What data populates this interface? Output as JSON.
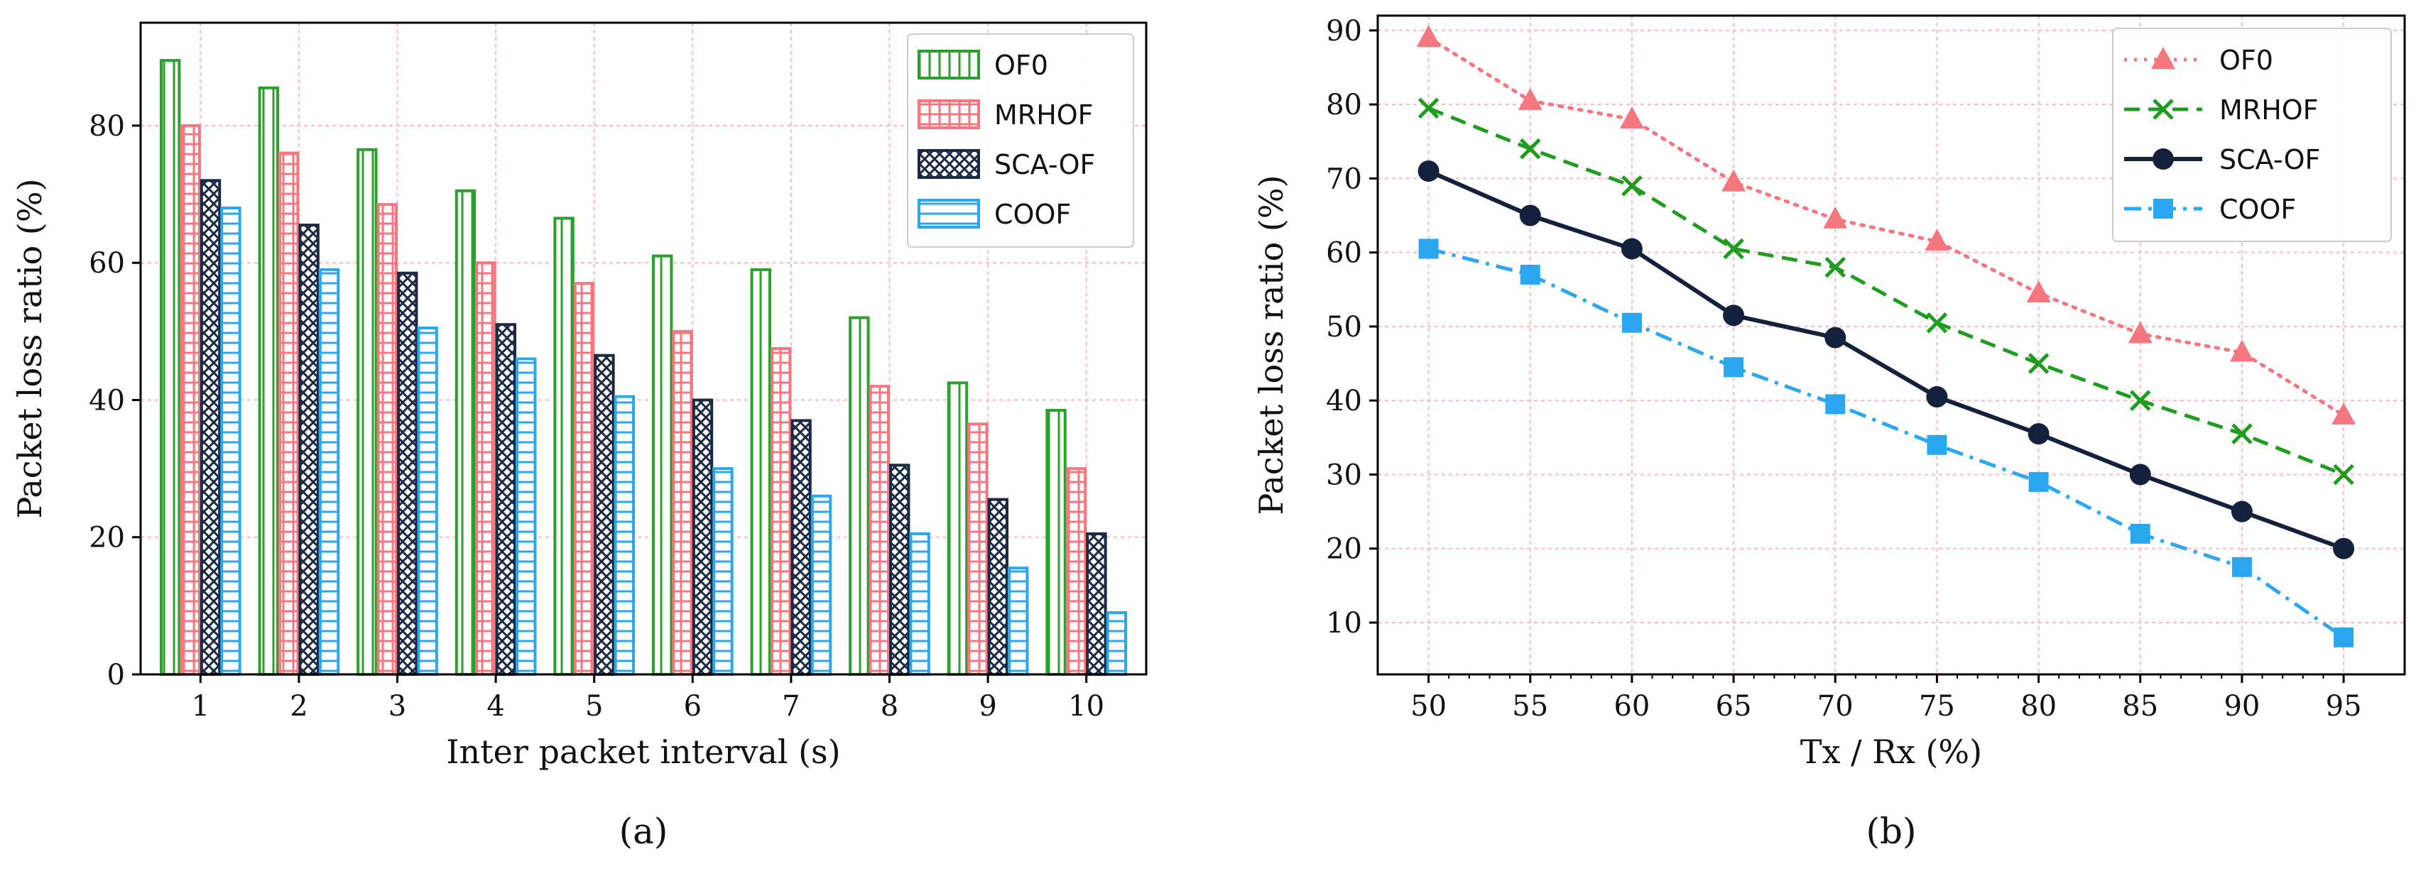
{
  "chart_data": [
    {
      "panel": "(a)",
      "type": "bar",
      "xlabel": "Inter packet interval (s)",
      "ylabel": "Packet loss ratio (%)",
      "categories": [
        "1",
        "2",
        "3",
        "4",
        "5",
        "6",
        "7",
        "8",
        "9",
        "10"
      ],
      "ylim": [
        0,
        95
      ],
      "yticks": [
        0,
        20,
        40,
        60,
        80
      ],
      "grid": true,
      "legend": "top-right",
      "series": [
        {
          "name": "OF0",
          "color": "#2ca02c",
          "pattern": "vertical-lines",
          "values": [
            89.5,
            85.5,
            76.5,
            70.5,
            66.5,
            61,
            59,
            52,
            42.5,
            38.5
          ]
        },
        {
          "name": "MRHOF",
          "color": "#f4777f",
          "pattern": "grid",
          "values": [
            80,
            76,
            68.5,
            60,
            57,
            50,
            47.5,
            42,
            36.5,
            30
          ]
        },
        {
          "name": "SCA-OF",
          "color": "#1a2a45",
          "pattern": "crosshatch",
          "values": [
            72,
            65.5,
            58.5,
            51,
            46.5,
            40,
            37,
            30.5,
            25.5,
            20.5
          ]
        },
        {
          "name": "COOF",
          "color": "#2aa7ef",
          "pattern": "horizontal-lines",
          "values": [
            68,
            59,
            50.5,
            46,
            40.5,
            30,
            26,
            20.5,
            15.5,
            9
          ]
        }
      ]
    },
    {
      "panel": "(b)",
      "type": "line",
      "xlabel": "Tx / Rx (%)",
      "ylabel": "Packet loss ratio (%)",
      "x": [
        50,
        55,
        60,
        65,
        70,
        75,
        80,
        85,
        90,
        95
      ],
      "xlim": [
        47.5,
        98
      ],
      "ylim": [
        3,
        92
      ],
      "yticks": [
        10,
        20,
        30,
        40,
        50,
        60,
        70,
        80,
        90
      ],
      "grid": true,
      "legend": "top-right",
      "series": [
        {
          "name": "OF0",
          "color": "#f4777f",
          "linestyle": "dotted",
          "marker": "triangle",
          "values": [
            89,
            80.5,
            78,
            69.5,
            64.5,
            61.5,
            54.5,
            49,
            46.5,
            38
          ]
        },
        {
          "name": "MRHOF",
          "color": "#1e9c1e",
          "linestyle": "dashed",
          "marker": "x",
          "values": [
            79.5,
            74,
            69,
            60.5,
            58,
            50.5,
            45,
            40,
            35.5,
            30
          ]
        },
        {
          "name": "SCA-OF",
          "color": "#14213d",
          "linestyle": "solid",
          "marker": "circle",
          "values": [
            71,
            65,
            60.5,
            51.5,
            48.5,
            40.5,
            35.5,
            30,
            25,
            20
          ]
        },
        {
          "name": "COOF",
          "color": "#2aa7ef",
          "linestyle": "dashdot",
          "marker": "square",
          "values": [
            60.5,
            57,
            50.5,
            44.5,
            39.5,
            34,
            29,
            22,
            17.5,
            8
          ]
        }
      ]
    }
  ]
}
